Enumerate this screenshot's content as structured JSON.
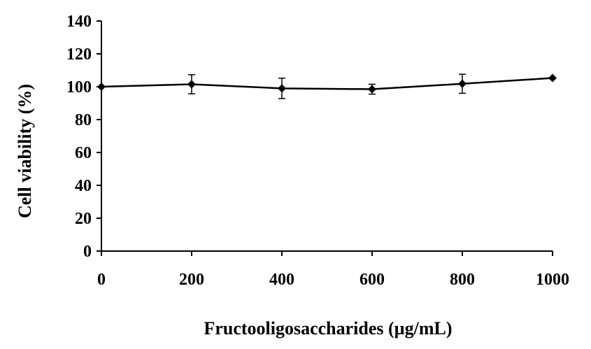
{
  "chart_data": {
    "type": "line",
    "title": "",
    "xlabel": "Fructooligosaccharides (µg/mL)",
    "ylabel": "Cell viability (%)",
    "xlim": [
      0,
      1000
    ],
    "ylim": [
      0,
      140
    ],
    "x_ticks": [
      "0",
      "200",
      "400",
      "600",
      "800",
      "1000"
    ],
    "y_ticks": [
      "0",
      "20",
      "40",
      "60",
      "80",
      "100",
      "120",
      "140"
    ],
    "grid": false,
    "legend": "none",
    "marker": "diamond",
    "color": "#000000",
    "series": [
      {
        "x": [
          0,
          200,
          400,
          600,
          800,
          1000
        ],
        "y": [
          100,
          101.5,
          99,
          98.5,
          101.8,
          105.3
        ],
        "error": [
          0,
          5.8,
          6.2,
          3.0,
          5.8,
          0
        ]
      }
    ]
  }
}
